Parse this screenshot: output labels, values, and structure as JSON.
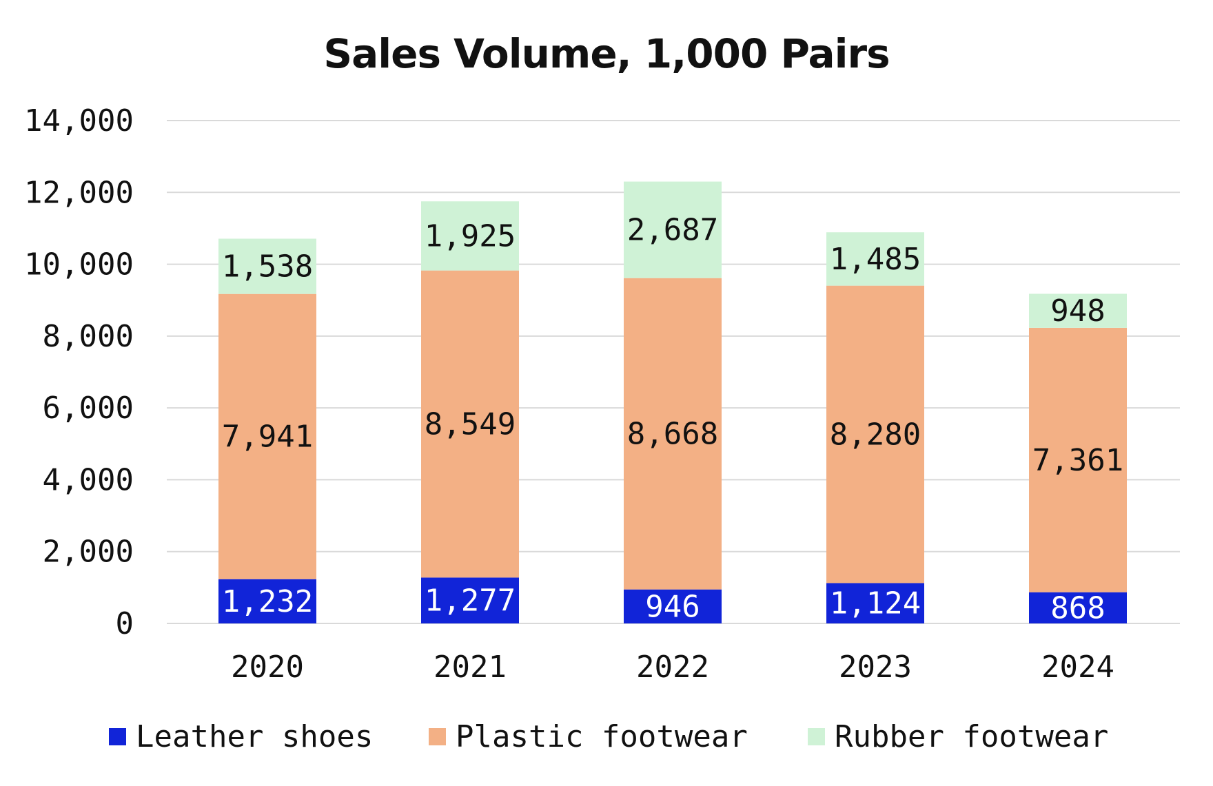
{
  "chart_data": {
    "type": "bar",
    "stacked": true,
    "title": "Sales Volume, 1,000 Pairs",
    "xlabel": "",
    "ylabel": "",
    "ylim": [
      0,
      14000
    ],
    "yticks": [
      0,
      2000,
      4000,
      6000,
      8000,
      10000,
      12000,
      14000
    ],
    "ytick_labels": [
      "0",
      "2,000",
      "4,000",
      "6,000",
      "8,000",
      "10,000",
      "12,000",
      "14,000"
    ],
    "grid": true,
    "legend_position": "bottom",
    "categories": [
      "2020",
      "2021",
      "2022",
      "2023",
      "2024"
    ],
    "series": [
      {
        "name": "Leather shoes",
        "color": "#1124d8",
        "label_color": "#ffffff",
        "values": [
          1232,
          1277,
          946,
          1124,
          868
        ],
        "labels": [
          "1,232",
          "1,277",
          "946",
          "1,124",
          "868"
        ]
      },
      {
        "name": "Plastic footwear",
        "color": "#f3b085",
        "label_color": "#111111",
        "values": [
          7941,
          8549,
          8668,
          8280,
          7361
        ],
        "labels": [
          "7,941",
          "8,549",
          "8,668",
          "8,280",
          "7,361"
        ]
      },
      {
        "name": "Rubber footwear",
        "color": "#cff2d6",
        "label_color": "#111111",
        "values": [
          1538,
          1925,
          2687,
          1485,
          948
        ],
        "labels": [
          "1,538",
          "1,925",
          "2,687",
          "1,485",
          "948"
        ]
      }
    ]
  }
}
